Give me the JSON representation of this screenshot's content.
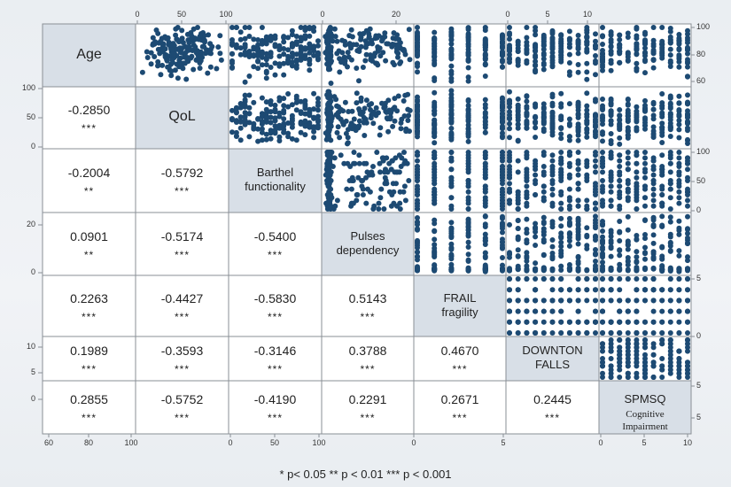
{
  "chart_data": {
    "type": "scatter-matrix",
    "variables": [
      {
        "line1": "Age",
        "line2": ""
      },
      {
        "line1": "QoL",
        "line2": ""
      },
      {
        "line1": "Barthel",
        "line2": "functionality"
      },
      {
        "line1": "Pulses",
        "line2": "dependency"
      },
      {
        "line1": "FRAIL",
        "line2": "fragility"
      },
      {
        "line1": "DOWNTON",
        "line2": "FALLS"
      },
      {
        "line1": "SPMSQ",
        "line2": "Cognitive Impairment"
      }
    ],
    "correlations": [
      [],
      [
        {
          "r": "-0.2850",
          "sig": "***"
        }
      ],
      [
        {
          "r": "-0.2004",
          "sig": "**"
        },
        {
          "r": "-0.5792",
          "sig": "***"
        }
      ],
      [
        {
          "r": "0.0901",
          "sig": "**"
        },
        {
          "r": "-0.5174",
          "sig": "***"
        },
        {
          "r": "-0.5400",
          "sig": "***"
        }
      ],
      [
        {
          "r": "0.2263",
          "sig": "***"
        },
        {
          "r": "-0.4427",
          "sig": "***"
        },
        {
          "r": "-0.5830",
          "sig": "***"
        },
        {
          "r": "0.5143",
          "sig": "***"
        }
      ],
      [
        {
          "r": "0.1989",
          "sig": "***"
        },
        {
          "r": "-0.3593",
          "sig": "***"
        },
        {
          "r": "-0.3146",
          "sig": "***"
        },
        {
          "r": "0.3788",
          "sig": "***"
        },
        {
          "r": "0.4670",
          "sig": "***"
        }
      ],
      [
        {
          "r": "0.2855",
          "sig": "***"
        },
        {
          "r": "-0.5752",
          "sig": "***"
        },
        {
          "r": "-0.4190",
          "sig": "***"
        },
        {
          "r": "0.2291",
          "sig": "***"
        },
        {
          "r": "0.2671",
          "sig": "***"
        },
        {
          "r": "0.2445",
          "sig": "***"
        }
      ]
    ],
    "ranges": {
      "Age": [
        60,
        100
      ],
      "QoL": [
        0,
        100
      ],
      "Barthel": [
        0,
        100
      ],
      "Pulses": [
        0,
        24
      ],
      "FRAIL": [
        0,
        5
      ],
      "DOWNTON": [
        0,
        10
      ],
      "SPMSQ": [
        0,
        10
      ]
    },
    "ticks": {
      "top": [
        "0",
        "50",
        "100",
        "0",
        "20",
        "0",
        "5",
        "10"
      ],
      "right": [
        "100",
        "80",
        "60",
        "100",
        "50",
        "0",
        "5",
        "0",
        "5",
        "5"
      ],
      "left": [
        "100",
        "50",
        "0",
        "20",
        "0",
        "10",
        "5",
        "0"
      ],
      "bottom": [
        "60",
        "80",
        "100",
        "0",
        "50",
        "100",
        "0",
        "5",
        "0",
        "5",
        "10"
      ]
    },
    "legend": "* p<  0.05    ** p < 0.01    ***  p < 0.001",
    "colors": {
      "dot": "#1d4a73",
      "diagonal": "#d8dfe7",
      "grid": "#8a8f96"
    }
  }
}
